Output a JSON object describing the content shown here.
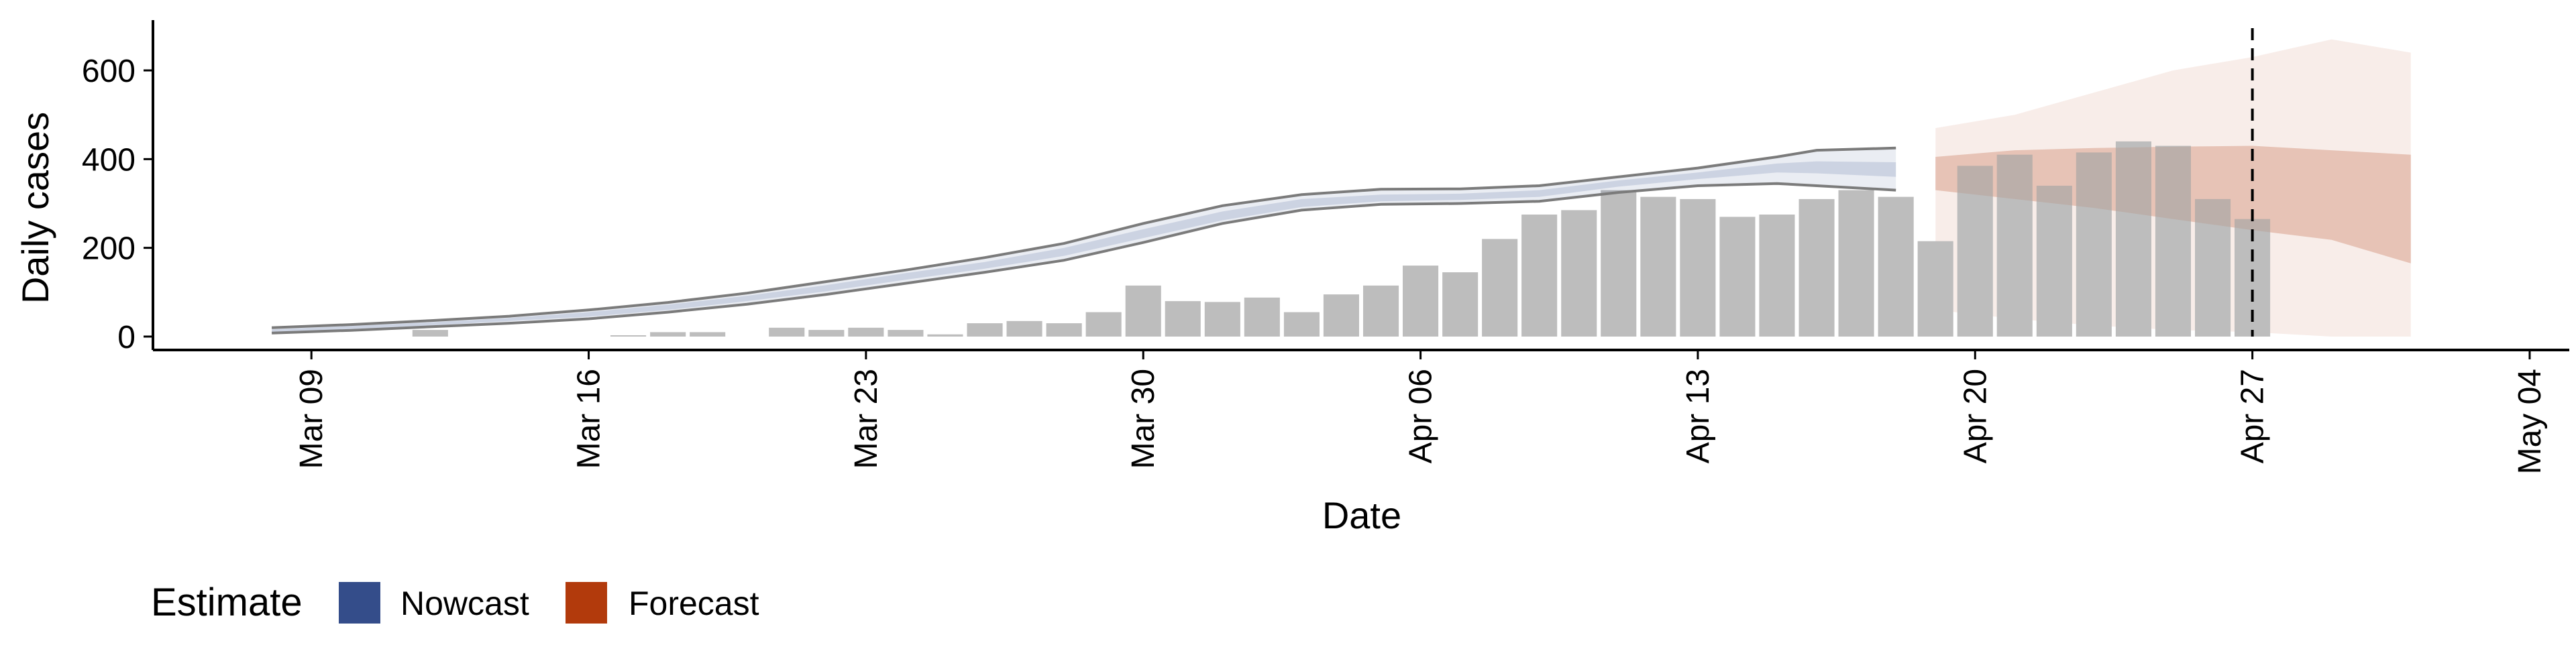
{
  "chart_data": {
    "type": "bar",
    "xlabel": "Date",
    "ylabel": "Daily cases",
    "ylim": [
      0,
      700
    ],
    "xlim": [
      "2020-03-05",
      "2020-05-05"
    ],
    "grid": false,
    "legend": {
      "placement": "bottom-left",
      "title": "Estimate",
      "entries": [
        {
          "label": "Nowcast",
          "color": "#344d8a"
        },
        {
          "label": "Forecast",
          "color": "#b23a0c"
        }
      ]
    },
    "x_ticks": [
      {
        "date": "2020-03-09",
        "label": "Mar 09"
      },
      {
        "date": "2020-03-16",
        "label": "Mar 16"
      },
      {
        "date": "2020-03-23",
        "label": "Mar 23"
      },
      {
        "date": "2020-03-30",
        "label": "Mar 30"
      },
      {
        "date": "2020-04-06",
        "label": "Apr 06"
      },
      {
        "date": "2020-04-13",
        "label": "Apr 13"
      },
      {
        "date": "2020-04-20",
        "label": "Apr 20"
      },
      {
        "date": "2020-04-27",
        "label": "Apr 27"
      },
      {
        "date": "2020-05-04",
        "label": "May 04"
      }
    ],
    "y_ticks": [
      0,
      200,
      400,
      600
    ],
    "vline_date": "2020-04-27",
    "bars": {
      "color": "#bdbdbd",
      "dates": [
        "2020-03-12",
        "2020-03-17",
        "2020-03-18",
        "2020-03-19",
        "2020-03-21",
        "2020-03-22",
        "2020-03-23",
        "2020-03-24",
        "2020-03-25",
        "2020-03-26",
        "2020-03-27",
        "2020-03-28",
        "2020-03-29",
        "2020-03-30",
        "2020-03-31",
        "2020-04-01",
        "2020-04-02",
        "2020-04-03",
        "2020-04-04",
        "2020-04-05",
        "2020-04-06",
        "2020-04-07",
        "2020-04-08",
        "2020-04-09",
        "2020-04-10",
        "2020-04-11",
        "2020-04-12",
        "2020-04-13",
        "2020-04-14",
        "2020-04-15",
        "2020-04-16",
        "2020-04-17",
        "2020-04-18",
        "2020-04-19",
        "2020-04-20",
        "2020-04-21",
        "2020-04-22",
        "2020-04-23",
        "2020-04-24",
        "2020-04-25",
        "2020-04-26",
        "2020-04-27"
      ],
      "values": [
        15,
        3,
        10,
        10,
        20,
        15,
        20,
        15,
        5,
        30,
        35,
        30,
        55,
        115,
        80,
        78,
        88,
        55,
        95,
        115,
        160,
        145,
        220,
        275,
        285,
        330,
        315,
        310,
        270,
        275,
        310,
        330,
        315,
        215,
        385,
        410,
        340,
        415,
        440,
        430,
        310,
        265
      ]
    },
    "nowcast": {
      "color": "#344d8a",
      "dates": [
        "2020-03-08",
        "2020-03-10",
        "2020-03-12",
        "2020-03-14",
        "2020-03-16",
        "2020-03-18",
        "2020-03-20",
        "2020-03-22",
        "2020-03-24",
        "2020-03-26",
        "2020-03-28",
        "2020-03-30",
        "2020-04-01",
        "2020-04-03",
        "2020-04-05",
        "2020-04-07",
        "2020-04-09",
        "2020-04-11",
        "2020-04-13",
        "2020-04-15",
        "2020-04-16",
        "2020-04-18"
      ],
      "median": [
        13,
        20,
        28,
        38,
        50,
        65,
        85,
        108,
        135,
        160,
        190,
        232,
        272,
        300,
        312,
        315,
        322,
        345,
        362,
        380,
        382,
        378
      ],
      "lower_50": [
        10,
        17,
        25,
        35,
        45,
        60,
        80,
        102,
        128,
        153,
        182,
        222,
        262,
        292,
        305,
        308,
        315,
        338,
        355,
        370,
        368,
        360
      ],
      "upper_50": [
        16,
        24,
        32,
        42,
        55,
        72,
        92,
        116,
        143,
        168,
        200,
        242,
        282,
        310,
        320,
        322,
        330,
        352,
        370,
        390,
        395,
        393
      ],
      "lower_90": [
        8,
        14,
        22,
        30,
        40,
        55,
        73,
        95,
        120,
        145,
        172,
        212,
        255,
        285,
        298,
        300,
        305,
        325,
        340,
        345,
        340,
        330
      ],
      "upper_90": [
        20,
        27,
        36,
        46,
        60,
        77,
        98,
        124,
        150,
        178,
        210,
        255,
        295,
        320,
        332,
        333,
        340,
        360,
        380,
        405,
        420,
        425
      ]
    },
    "forecast": {
      "color": "#b23a0c",
      "dates": [
        "2020-04-19",
        "2020-04-21",
        "2020-04-23",
        "2020-04-25",
        "2020-04-27",
        "2020-04-29",
        "2020-05-01"
      ],
      "median": [
        370,
        370,
        360,
        350,
        338,
        328,
        300
      ],
      "lower_50": [
        330,
        310,
        290,
        265,
        240,
        218,
        165
      ],
      "upper_50": [
        405,
        420,
        425,
        428,
        430,
        420,
        410
      ],
      "lower_90": [
        60,
        40,
        25,
        15,
        10,
        0,
        0
      ],
      "upper_90": [
        470,
        500,
        550,
        600,
        630,
        670,
        640
      ]
    }
  }
}
